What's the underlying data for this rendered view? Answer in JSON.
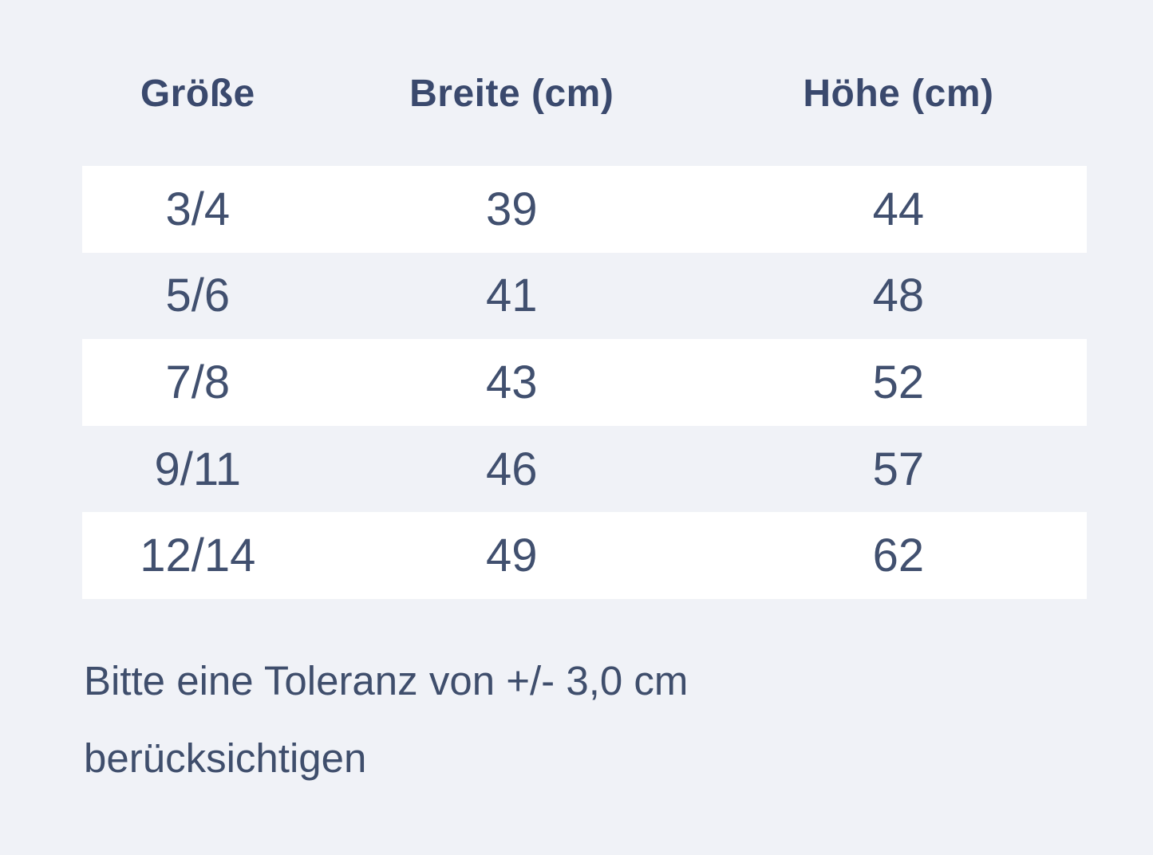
{
  "chart_data": {
    "type": "table",
    "title": "",
    "columns": [
      "Größe",
      "Breite (cm)",
      "Höhe (cm)"
    ],
    "rows": [
      [
        "3/4",
        "39",
        "44"
      ],
      [
        "5/6",
        "41",
        "48"
      ],
      [
        "7/8",
        "43",
        "52"
      ],
      [
        "9/11",
        "46",
        "57"
      ],
      [
        "12/14",
        "49",
        "62"
      ]
    ],
    "row_stripe_pattern": "odd rows white, even rows page background",
    "note": "Bitte eine Toleranz von +/- 3,0 cm berücksichtigen"
  },
  "note_lines": {
    "line1": "Bitte eine Toleranz von +/- 3,0 cm",
    "line2": "berücksichtigen"
  },
  "colors": {
    "page_background": "#f0f2f7",
    "row_stripe": "#ffffff",
    "header_text": "#3a496d",
    "cell_text": "#41506f",
    "note_text": "#3f4e6c"
  }
}
